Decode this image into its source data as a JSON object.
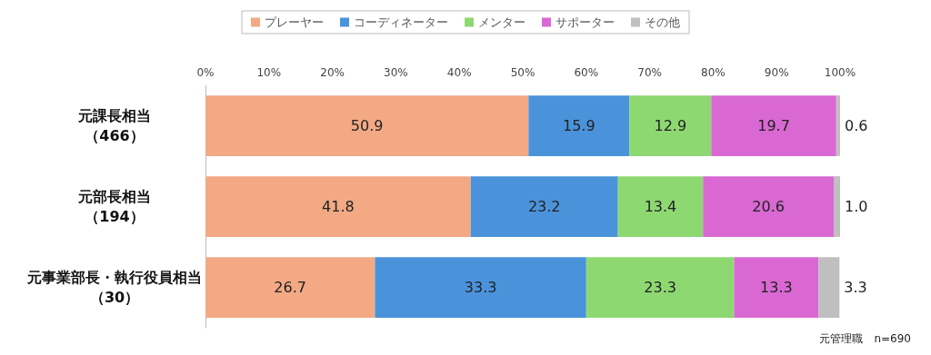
{
  "chart_data": {
    "type": "bar",
    "orientation": "horizontal",
    "stacked": true,
    "legend": "top",
    "grid": false,
    "categories": [
      "元課長相当（466）",
      "元部長相当（194）",
      "元事業部長・執行役員相当（30）"
    ],
    "xlim": [
      0,
      100
    ],
    "xticks": [
      {
        "value": 0,
        "label": "0%"
      },
      {
        "value": 10,
        "label": "10%"
      },
      {
        "value": 20,
        "label": "20%"
      },
      {
        "value": 30,
        "label": "30%"
      },
      {
        "value": 40,
        "label": "40%"
      },
      {
        "value": 50,
        "label": "50%"
      },
      {
        "value": 60,
        "label": "60%"
      },
      {
        "value": 70,
        "label": "70%"
      },
      {
        "value": 80,
        "label": "80%"
      },
      {
        "value": 90,
        "label": "90%"
      },
      {
        "value": 100,
        "label": "100%"
      }
    ],
    "series": [
      {
        "name": "プレーヤー",
        "color": "#f2a984",
        "values": [
          50.9,
          41.8,
          26.7
        ],
        "value_labels": [
          "50.9",
          "41.8",
          "26.7"
        ]
      },
      {
        "name": "コーディネーター",
        "color": "#4a93db",
        "values": [
          15.9,
          23.2,
          33.3
        ],
        "value_labels": [
          "15.9",
          "23.2",
          "33.3"
        ]
      },
      {
        "name": "メンター",
        "color": "#8ed872",
        "values": [
          12.9,
          13.4,
          23.3
        ],
        "value_labels": [
          "12.9",
          "13.4",
          "23.3"
        ]
      },
      {
        "name": "サポーター",
        "color": "#d968d3",
        "values": [
          19.7,
          20.6,
          13.3
        ],
        "value_labels": [
          "19.7",
          "20.6",
          "13.3"
        ]
      },
      {
        "name": "その他",
        "color": "#bfbfbf",
        "values": [
          0.6,
          1.0,
          3.3
        ],
        "value_labels": [
          "0.6",
          "1.0",
          "3.3"
        ]
      }
    ],
    "annotations": [
      "元管理職　n=690"
    ]
  }
}
